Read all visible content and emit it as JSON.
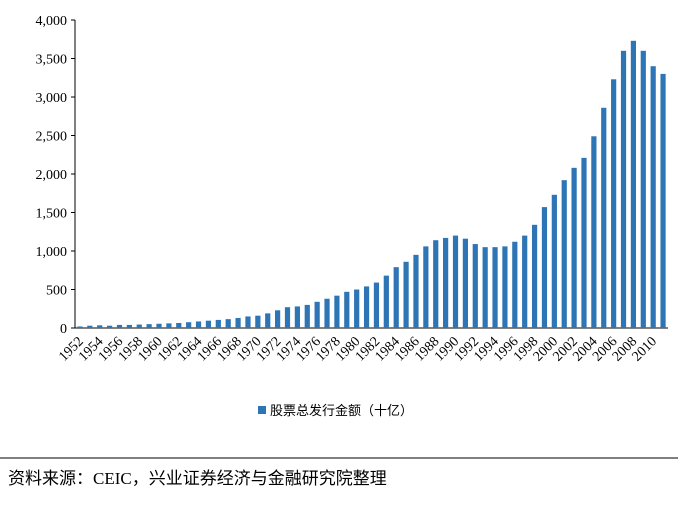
{
  "chart_data": {
    "type": "bar",
    "categories": [
      "1952",
      null,
      "1954",
      null,
      "1956",
      null,
      "1958",
      null,
      "1960",
      null,
      "1962",
      null,
      "1964",
      null,
      "1966",
      null,
      "1968",
      null,
      "1970",
      null,
      "1972",
      null,
      "1974",
      null,
      "1976",
      null,
      "1978",
      null,
      "1980",
      null,
      "1982",
      null,
      "1984",
      null,
      "1986",
      null,
      "1988",
      null,
      "1990",
      null,
      "1992",
      null,
      "1994",
      null,
      "1996",
      null,
      "1998",
      null,
      "2000",
      null,
      "2002",
      null,
      "2004",
      null,
      "2006",
      null,
      "2008",
      null,
      "2010",
      null
    ],
    "series": [
      {
        "name": "股票总发行金额（十亿）",
        "color": "#2e75b6",
        "values": [
          20,
          30,
          35,
          30,
          40,
          40,
          45,
          50,
          55,
          60,
          65,
          75,
          85,
          95,
          105,
          115,
          130,
          150,
          160,
          190,
          230,
          270,
          280,
          300,
          340,
          380,
          420,
          470,
          500,
          540,
          590,
          680,
          790,
          860,
          950,
          1060,
          1140,
          1170,
          1200,
          1160,
          1090,
          1050,
          1050,
          1060,
          1120,
          1200,
          1340,
          1570,
          1730,
          1920,
          2080,
          2210,
          2490,
          2860,
          3230,
          3600,
          3730,
          3600,
          3400,
          3300
        ]
      }
    ],
    "ylim": [
      0,
      4000
    ],
    "yticks": [
      0,
      500,
      {
        "value": 1000,
        "label": "1,000"
      },
      {
        "value": 1500,
        "label": "1,500"
      },
      {
        "value": 2000,
        "label": "2,000"
      },
      {
        "value": 2500,
        "label": "2,500"
      },
      {
        "value": 3000,
        "label": "3,000"
      },
      {
        "value": 3500,
        "label": "3,500"
      },
      {
        "value": 4000,
        "label": "4,000"
      }
    ],
    "legend": "bottom",
    "source": "资料来源：CEIC，兴业证券经济与金融研究院整理"
  }
}
